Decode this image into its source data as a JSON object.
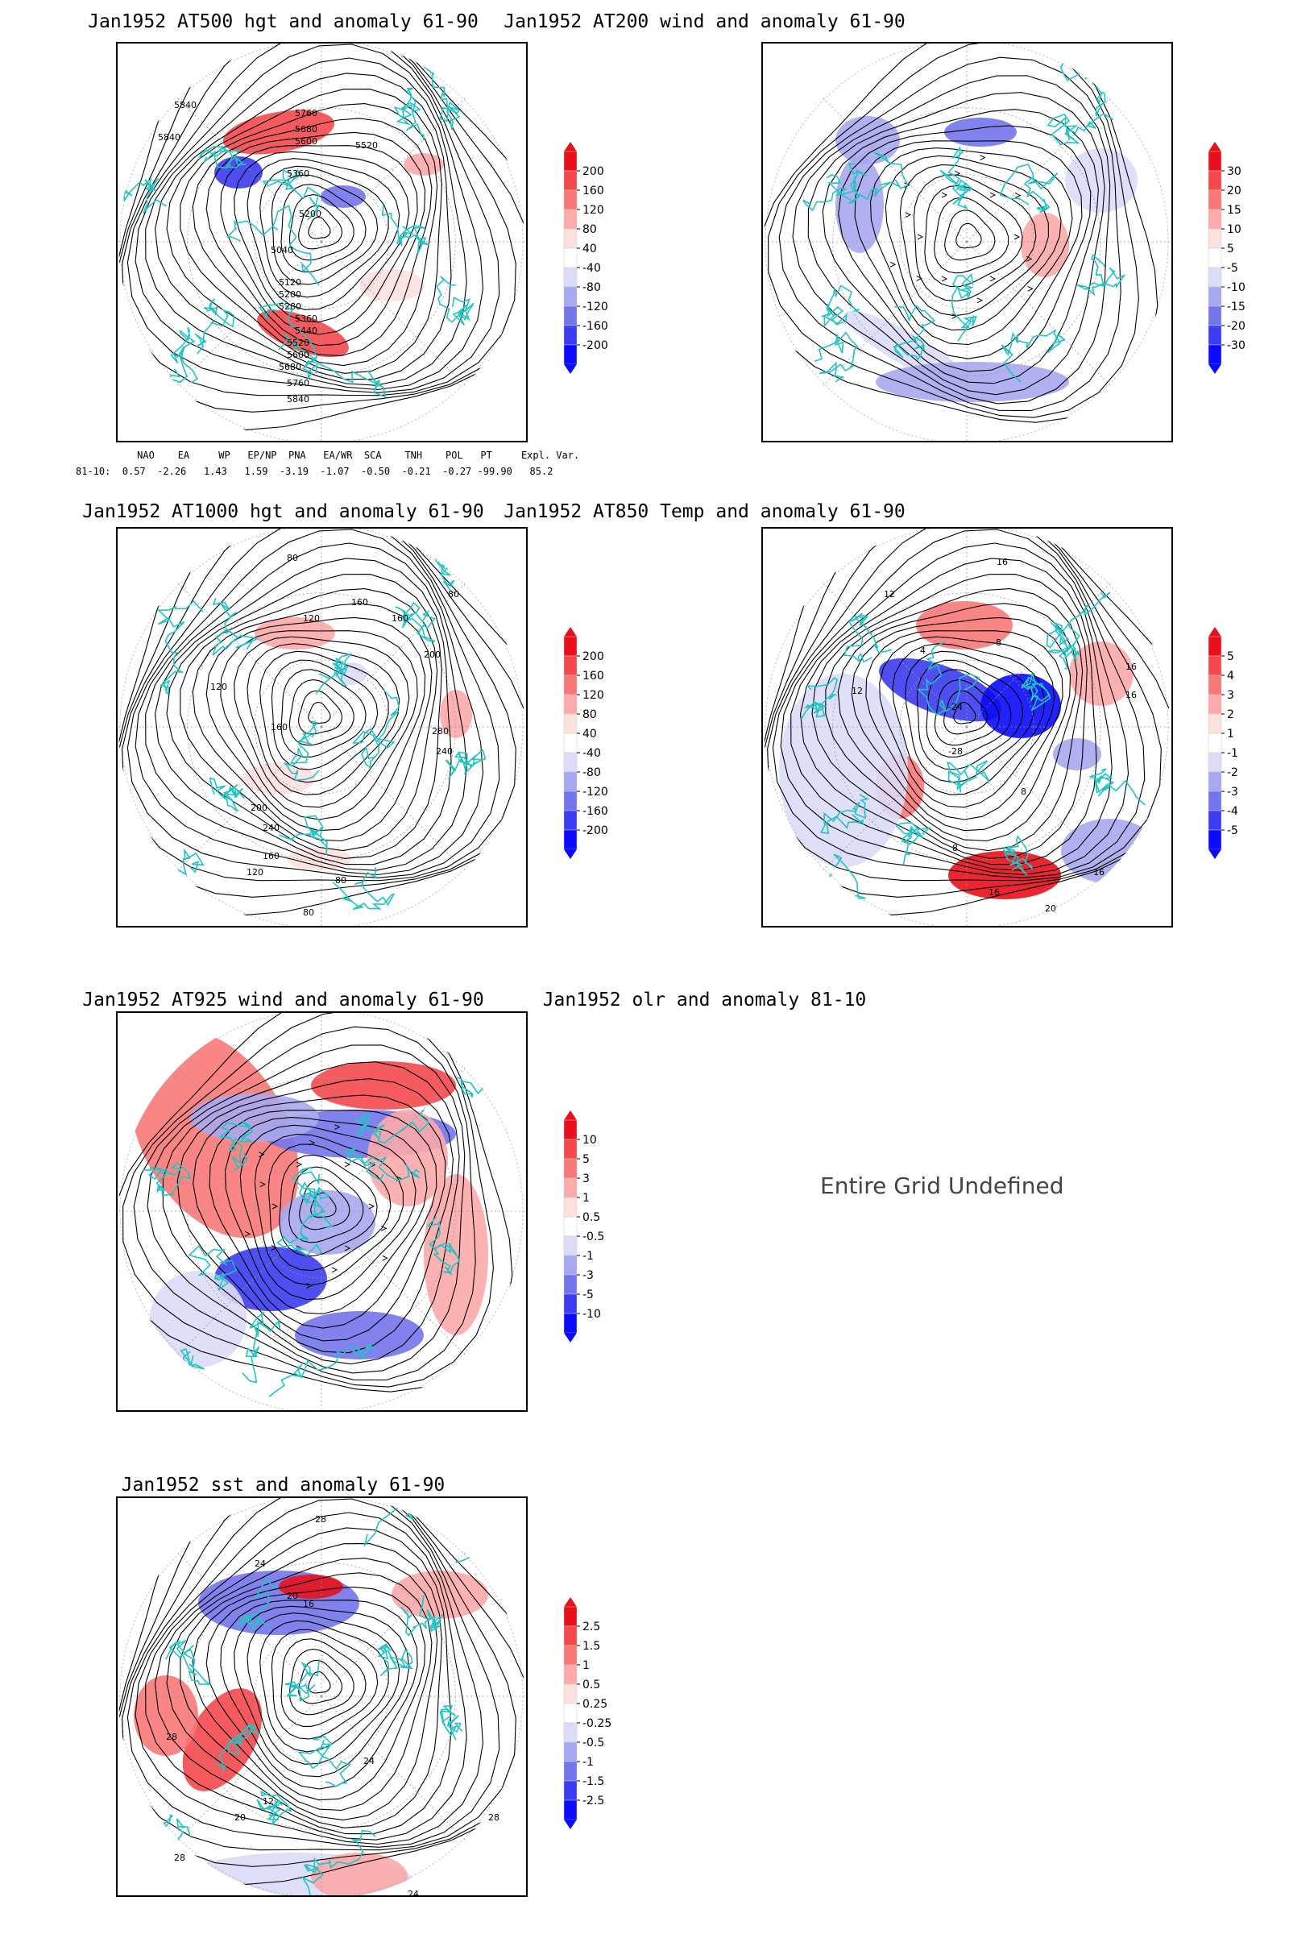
{
  "panels": [
    {
      "id": "at500",
      "title": "Jan1952 AT500 hgt and anomaly 61-90",
      "labels": [
        "5840",
        "5840",
        "5760",
        "5680",
        "5600",
        "5520",
        "5360",
        "5200",
        "5040",
        "5120",
        "5200",
        "5280",
        "5360",
        "5440",
        "5520",
        "5600",
        "5680",
        "5760",
        "5840"
      ],
      "colorbar": {
        "levels": [
          "200",
          "160",
          "120",
          "80",
          "40",
          "-40",
          "-80",
          "-120",
          "-160",
          "-200"
        ]
      }
    },
    {
      "id": "at200",
      "title": "Jan1952 AT200 wind and anomaly 61-90",
      "labels": [],
      "colorbar": {
        "levels": [
          "30",
          "20",
          "15",
          "10",
          "5",
          "-5",
          "-10",
          "-15",
          "-20",
          "-30"
        ]
      }
    },
    {
      "id": "at1000",
      "title": "Jan1952 AT1000 hgt and anomaly 61-90",
      "labels": [
        "80",
        "80",
        "120",
        "160",
        "160",
        "200",
        "280",
        "240",
        "120",
        "160",
        "200",
        "240",
        "160",
        "120",
        "80",
        "80"
      ],
      "colorbar": {
        "levels": [
          "200",
          "160",
          "120",
          "80",
          "40",
          "-40",
          "-80",
          "-120",
          "-160",
          "-200"
        ]
      }
    },
    {
      "id": "at850",
      "title": "Jan1952 AT850 Temp and anomaly 61-90",
      "labels": [
        "16",
        "12",
        "4",
        "-8",
        "-24",
        "-28",
        "16",
        "16",
        "12",
        "8",
        "8",
        "16",
        "20",
        "16"
      ],
      "colorbar": {
        "levels": [
          "5",
          "4",
          "3",
          "2",
          "1",
          "-1",
          "-2",
          "-3",
          "-4",
          "-5"
        ]
      }
    },
    {
      "id": "at925",
      "title": "Jan1952 AT925 wind and anomaly 61-90",
      "labels": [],
      "colorbar": {
        "levels": [
          "10",
          "5",
          "3",
          "1",
          "0.5",
          "-0.5",
          "-1",
          "-3",
          "-5",
          "-10"
        ]
      }
    },
    {
      "id": "sst",
      "title": "Jan1952 sst and anomaly 61-90",
      "labels": [
        "28",
        "24",
        "20",
        "16",
        "28",
        "12",
        "20",
        "24",
        "28",
        "24",
        "28"
      ],
      "colorbar": {
        "levels": [
          "2.5",
          "1.5",
          "1",
          "0.5",
          "0.25",
          "-0.25",
          "-0.5",
          "-1",
          "-1.5",
          "-2.5"
        ]
      }
    }
  ],
  "olr": {
    "title": "Jan1952 olr and anomaly 81-10",
    "message": "Entire Grid Undefined"
  },
  "indices": {
    "header": "     NAO    EA     WP   EP/NP  PNA   EA/WR  SCA    TNH    POL   PT     Expl. Var.",
    "row": "81-10:  0.57  -2.26   1.43   1.59  -3.19  -1.07  -0.50  -0.21  -0.27 -99.90   85.2"
  },
  "colors": {
    "coast": "#20c4c4",
    "contour": "#000000",
    "scale": [
      "#e8101a",
      "#f4484c",
      "#f87878",
      "#fcaaaa",
      "#fde0e0",
      "#ffffff",
      "#dcdcf8",
      "#a8a8f0",
      "#7474ec",
      "#3c3cf0",
      "#0a0aff"
    ]
  }
}
